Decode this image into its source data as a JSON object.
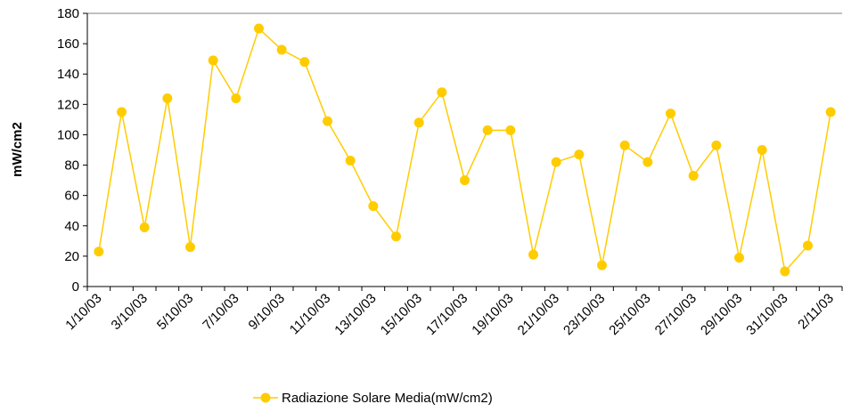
{
  "chart_data": {
    "type": "line",
    "y_label": "mW/cm2",
    "categories": [
      "1/10/03",
      null,
      "3/10/03",
      null,
      "5/10/03",
      null,
      "7/10/03",
      null,
      "9/10/03",
      null,
      "11/10/03",
      null,
      "13/10/03",
      null,
      "15/10/03",
      null,
      "17/10/03",
      null,
      "19/10/03",
      null,
      "21/10/03",
      null,
      "23/10/03",
      null,
      "25/10/03",
      null,
      "27/10/03",
      null,
      "29/10/03",
      null,
      "31/10/03",
      null,
      "2/11/03"
    ],
    "series": [
      {
        "name": "Radiazione Solare Media(mW/cm2)",
        "color": "#ffcc00",
        "values": [
          23,
          115,
          39,
          124,
          26,
          149,
          124,
          170,
          156,
          148,
          109,
          83,
          53,
          33,
          108,
          128,
          70,
          103,
          103,
          21,
          82,
          87,
          14,
          93,
          82,
          114,
          73,
          93,
          19,
          90,
          10,
          27,
          115
        ]
      }
    ],
    "ylim": [
      0,
      180
    ],
    "yticks": [
      0,
      20,
      40,
      60,
      80,
      100,
      120,
      140,
      160,
      180
    ],
    "legend": "bottom"
  }
}
